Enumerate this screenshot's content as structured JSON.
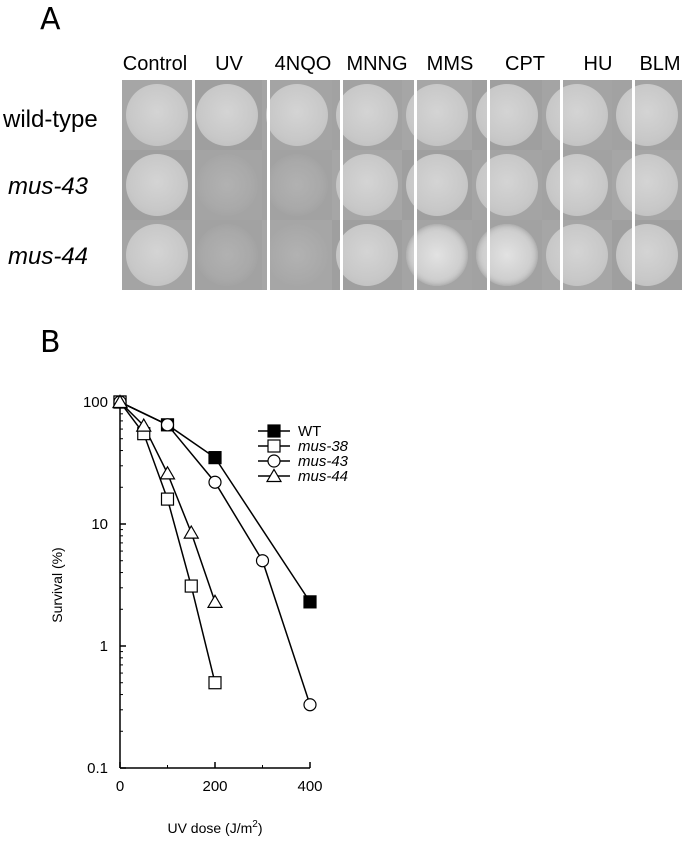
{
  "panel_a": {
    "letter": "A",
    "treatments": [
      "Control",
      "UV",
      "4NQO",
      "MNNG",
      "MMS",
      "CPT",
      "HU",
      "BLM"
    ],
    "strains": [
      {
        "label": "wild-type",
        "italic": false
      },
      {
        "label": "mus-43",
        "italic": true
      },
      {
        "label": "mus-44",
        "italic": true
      }
    ],
    "growth": [
      [
        "full",
        "full",
        "full",
        "full",
        "full",
        "full",
        "full",
        "full"
      ],
      [
        "full",
        "poor",
        "poor",
        "full",
        "full",
        "full",
        "full",
        "full"
      ],
      [
        "full",
        "poor",
        "poor",
        "full",
        "reduced",
        "reduced",
        "full",
        "full"
      ]
    ]
  },
  "panel_b": {
    "letter": "B",
    "chart_data": {
      "type": "line",
      "xlabel": "UV dose (J/m",
      "xlabel_sup": "2",
      "xlabel_end": ")",
      "ylabel": "Survival (%)",
      "xlim": [
        0,
        400
      ],
      "ylim": [
        0.1,
        100
      ],
      "y_scale": "log",
      "x_ticks": [
        0,
        200,
        400
      ],
      "x_tick_labels": [
        "0",
        "200",
        "400"
      ],
      "y_ticks": [
        0.1,
        1,
        10,
        100
      ],
      "y_tick_labels": [
        "0.1",
        "1",
        "10",
        "100"
      ],
      "legend_position": "top-right",
      "series": [
        {
          "name": "WT",
          "italic": false,
          "marker": "square-filled",
          "x": [
            0,
            100,
            200,
            400
          ],
          "y": [
            100,
            65,
            35,
            2.3
          ]
        },
        {
          "name": "mus-38",
          "italic": true,
          "marker": "square-open",
          "x": [
            0,
            50,
            100,
            150,
            200
          ],
          "y": [
            100,
            55,
            16,
            3.1,
            0.5
          ]
        },
        {
          "name": "mus-43",
          "italic": true,
          "marker": "circle-open",
          "x": [
            0,
            100,
            200,
            300,
            400
          ],
          "y": [
            100,
            65,
            22,
            5,
            0.33
          ]
        },
        {
          "name": "mus-44",
          "italic": true,
          "marker": "triangle-open",
          "x": [
            0,
            50,
            100,
            150,
            200
          ],
          "y": [
            100,
            64,
            26,
            8.5,
            2.3
          ]
        }
      ]
    }
  }
}
